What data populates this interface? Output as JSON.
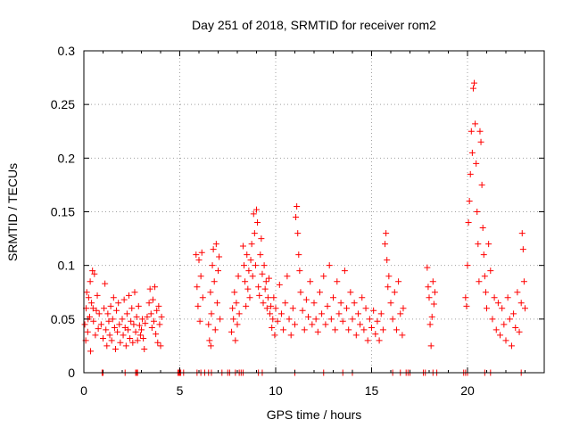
{
  "chart_data": {
    "type": "scatter",
    "title": "Day 251 of 2018, SRMTID for receiver rom2",
    "xlabel": "GPS time / hours",
    "ylabel": "SRMTID / TECUs",
    "xlim": [
      0,
      24
    ],
    "ylim": [
      0,
      0.3
    ],
    "xticks": [
      0,
      5,
      10,
      15,
      20
    ],
    "xtick_labels": [
      "0",
      "5",
      "10",
      "15",
      "20"
    ],
    "yticks": [
      0,
      0.05,
      0.1,
      0.15,
      0.2,
      0.25,
      0.3
    ],
    "ytick_labels": [
      "0",
      "0.05",
      "0.1",
      "0.15",
      "0.2",
      "0.25",
      "0.3"
    ],
    "grid": true,
    "marker": "+",
    "color": "#ff0000",
    "series": [
      {
        "name": "SRMTID rom2",
        "points": [
          [
            0.05,
            0.045
          ],
          [
            0.12,
            0.06
          ],
          [
            0.2,
            0.038
          ],
          [
            0.25,
            0.07
          ],
          [
            0.3,
            0.052
          ],
          [
            0.35,
            0.02
          ],
          [
            0.4,
            0.065
          ],
          [
            0.45,
            0.095
          ],
          [
            0.5,
            0.048
          ],
          [
            0.55,
            0.092
          ],
          [
            0.6,
            0.035
          ],
          [
            0.65,
            0.058
          ],
          [
            0.7,
            0.072
          ],
          [
            0.75,
            0.041
          ],
          [
            0.8,
            0.055
          ],
          [
            0.1,
            0.03
          ],
          [
            0.15,
            0.075
          ],
          [
            0.22,
            0.05
          ],
          [
            0.33,
            0.085
          ],
          [
            0.48,
            0.06
          ],
          [
            0.9,
            0.045
          ],
          [
            1.0,
            0.032
          ],
          [
            1.05,
            0.06
          ],
          [
            1.1,
            0.083
          ],
          [
            1.15,
            0.04
          ],
          [
            1.2,
            0.025
          ],
          [
            1.25,
            0.055
          ],
          [
            1.3,
            0.048
          ],
          [
            1.35,
            0.035
          ],
          [
            1.4,
            0.062
          ],
          [
            1.45,
            0.03
          ],
          [
            1.5,
            0.05
          ],
          [
            1.55,
            0.07
          ],
          [
            1.6,
            0.042
          ],
          [
            1.65,
            0.022
          ],
          [
            1.7,
            0.058
          ],
          [
            1.75,
            0.038
          ],
          [
            1.8,
            0.065
          ],
          [
            1.85,
            0.045
          ],
          [
            1.9,
            0.028
          ],
          [
            2.0,
            0.05
          ],
          [
            2.05,
            0.035
          ],
          [
            2.1,
            0.068
          ],
          [
            2.15,
            0.042
          ],
          [
            2.2,
            0.025
          ],
          [
            2.25,
            0.055
          ],
          [
            2.3,
            0.04
          ],
          [
            2.35,
            0.072
          ],
          [
            2.4,
            0.032
          ],
          [
            2.45,
            0.048
          ],
          [
            2.5,
            0.06
          ],
          [
            2.55,
            0.028
          ],
          [
            2.6,
            0.045
          ],
          [
            2.65,
            0.075
          ],
          [
            2.7,
            0.038
          ],
          [
            2.75,
            0.052
          ],
          [
            2.8,
            0.03
          ],
          [
            2.85,
            0.062
          ],
          [
            2.9,
            0.044
          ],
          [
            2.95,
            0.035
          ],
          [
            3.0,
            0.04
          ],
          [
            3.05,
            0.05
          ],
          [
            3.1,
            0.032
          ],
          [
            3.15,
            0.022
          ],
          [
            3.2,
            0.046
          ],
          [
            3.3,
            0.052
          ],
          [
            3.4,
            0.065
          ],
          [
            3.45,
            0.078
          ],
          [
            3.5,
            0.055
          ],
          [
            3.55,
            0.042
          ],
          [
            3.6,
            0.068
          ],
          [
            3.65,
            0.048
          ],
          [
            3.7,
            0.08
          ],
          [
            3.75,
            0.036
          ],
          [
            3.8,
            0.058
          ],
          [
            3.85,
            0.028
          ],
          [
            3.9,
            0.062
          ],
          [
            3.95,
            0.045
          ],
          [
            4.0,
            0.025
          ],
          [
            4.05,
            0.052
          ],
          [
            5.85,
            0.11
          ],
          [
            5.9,
            0.08
          ],
          [
            5.95,
            0.062
          ],
          [
            6.0,
            0.105
          ],
          [
            6.05,
            0.048
          ],
          [
            6.1,
            0.09
          ],
          [
            6.15,
            0.112
          ],
          [
            6.2,
            0.07
          ],
          [
            6.5,
            0.045
          ],
          [
            6.55,
            0.03
          ],
          [
            6.6,
            0.075
          ],
          [
            6.65,
            0.055
          ],
          [
            6.7,
            0.1
          ],
          [
            6.75,
            0.115
          ],
          [
            6.8,
            0.085
          ],
          [
            6.85,
            0.04
          ],
          [
            6.9,
            0.12
          ],
          [
            6.95,
            0.065
          ],
          [
            7.0,
            0.095
          ],
          [
            7.05,
            0.108
          ],
          [
            7.1,
            0.05
          ],
          [
            6.62,
            0.025
          ],
          [
            7.7,
            0.038
          ],
          [
            7.75,
            0.06
          ],
          [
            7.8,
            0.05
          ],
          [
            7.85,
            0.075
          ],
          [
            7.9,
            0.03
          ],
          [
            7.95,
            0.065
          ],
          [
            8.0,
            0.045
          ],
          [
            8.05,
            0.09
          ],
          [
            8.1,
            0.055
          ],
          [
            8.3,
            0.118
          ],
          [
            8.35,
            0.1
          ],
          [
            8.4,
            0.085
          ],
          [
            8.45,
            0.062
          ],
          [
            8.5,
            0.11
          ],
          [
            8.55,
            0.078
          ],
          [
            8.6,
            0.095
          ],
          [
            8.65,
            0.07
          ],
          [
            8.7,
            0.105
          ],
          [
            8.75,
            0.12
          ],
          [
            8.8,
            0.09
          ],
          [
            8.85,
            0.148
          ],
          [
            8.9,
            0.13
          ],
          [
            8.95,
            0.1
          ],
          [
            9.0,
            0.152
          ],
          [
            9.05,
            0.14
          ],
          [
            9.1,
            0.08
          ],
          [
            9.15,
            0.072
          ],
          [
            9.2,
            0.11
          ],
          [
            9.25,
            0.125
          ],
          [
            9.3,
            0.092
          ],
          [
            9.35,
            0.065
          ],
          [
            9.4,
            0.1
          ],
          [
            9.45,
            0.078
          ],
          [
            9.5,
            0.085
          ],
          [
            9.55,
            0.06
          ],
          [
            9.6,
            0.07
          ],
          [
            9.65,
            0.088
          ],
          [
            9.7,
            0.055
          ],
          [
            9.75,
            0.062
          ],
          [
            9.8,
            0.042
          ],
          [
            9.85,
            0.05
          ],
          [
            9.9,
            0.07
          ],
          [
            9.95,
            0.035
          ],
          [
            10.0,
            0.06
          ],
          [
            10.1,
            0.048
          ],
          [
            10.2,
            0.082
          ],
          [
            10.3,
            0.055
          ],
          [
            10.4,
            0.04
          ],
          [
            10.5,
            0.065
          ],
          [
            10.6,
            0.09
          ],
          [
            10.7,
            0.05
          ],
          [
            10.8,
            0.035
          ],
          [
            10.9,
            0.06
          ],
          [
            11.0,
            0.045
          ],
          [
            11.05,
            0.145
          ],
          [
            11.1,
            0.155
          ],
          [
            11.15,
            0.13
          ],
          [
            11.2,
            0.11
          ],
          [
            11.25,
            0.095
          ],
          [
            11.3,
            0.075
          ],
          [
            11.4,
            0.058
          ],
          [
            11.5,
            0.04
          ],
          [
            11.6,
            0.068
          ],
          [
            11.7,
            0.052
          ],
          [
            11.8,
            0.085
          ],
          [
            11.9,
            0.045
          ],
          [
            12.0,
            0.065
          ],
          [
            12.1,
            0.05
          ],
          [
            12.2,
            0.038
          ],
          [
            12.3,
            0.075
          ],
          [
            12.4,
            0.055
          ],
          [
            12.5,
            0.09
          ],
          [
            12.6,
            0.045
          ],
          [
            12.7,
            0.062
          ],
          [
            12.8,
            0.1
          ],
          [
            12.9,
            0.05
          ],
          [
            13.0,
            0.07
          ],
          [
            13.1,
            0.04
          ],
          [
            13.2,
            0.085
          ],
          [
            13.3,
            0.055
          ],
          [
            13.4,
            0.065
          ],
          [
            13.5,
            0.048
          ],
          [
            13.6,
            0.095
          ],
          [
            13.7,
            0.06
          ],
          [
            13.8,
            0.04
          ],
          [
            13.9,
            0.075
          ],
          [
            14.0,
            0.05
          ],
          [
            14.1,
            0.065
          ],
          [
            14.2,
            0.035
          ],
          [
            14.3,
            0.055
          ],
          [
            14.4,
            0.045
          ],
          [
            14.5,
            0.07
          ],
          [
            14.6,
            0.04
          ],
          [
            14.7,
            0.06
          ],
          [
            14.8,
            0.03
          ],
          [
            14.9,
            0.05
          ],
          [
            15.0,
            0.042
          ],
          [
            15.1,
            0.058
          ],
          [
            15.2,
            0.036
          ],
          [
            15.3,
            0.048
          ],
          [
            15.4,
            0.03
          ],
          [
            15.5,
            0.055
          ],
          [
            15.6,
            0.04
          ],
          [
            15.7,
            0.12
          ],
          [
            15.75,
            0.13
          ],
          [
            15.8,
            0.105
          ],
          [
            15.85,
            0.08
          ],
          [
            15.9,
            0.09
          ],
          [
            16.0,
            0.065
          ],
          [
            16.1,
            0.05
          ],
          [
            16.2,
            0.075
          ],
          [
            16.3,
            0.04
          ],
          [
            16.4,
            0.085
          ],
          [
            16.5,
            0.055
          ],
          [
            16.6,
            0.035
          ],
          [
            16.65,
            0.06
          ],
          [
            17.9,
            0.098
          ],
          [
            17.95,
            0.08
          ],
          [
            18.0,
            0.07
          ],
          [
            18.05,
            0.045
          ],
          [
            18.1,
            0.025
          ],
          [
            18.15,
            0.052
          ],
          [
            18.2,
            0.085
          ],
          [
            18.25,
            0.064
          ],
          [
            18.3,
            0.075
          ],
          [
            19.9,
            0.07
          ],
          [
            19.95,
            0.062
          ],
          [
            20.0,
            0.1
          ],
          [
            20.05,
            0.14
          ],
          [
            20.1,
            0.16
          ],
          [
            20.15,
            0.185
          ],
          [
            20.2,
            0.225
          ],
          [
            20.25,
            0.205
          ],
          [
            20.3,
            0.265
          ],
          [
            20.35,
            0.27
          ],
          [
            20.4,
            0.232
          ],
          [
            20.45,
            0.195
          ],
          [
            20.5,
            0.15
          ],
          [
            20.55,
            0.12
          ],
          [
            20.6,
            0.085
          ],
          [
            20.65,
            0.225
          ],
          [
            20.7,
            0.215
          ],
          [
            20.75,
            0.175
          ],
          [
            20.8,
            0.135
          ],
          [
            20.85,
            0.11
          ],
          [
            20.9,
            0.09
          ],
          [
            20.95,
            0.075
          ],
          [
            21.0,
            0.06
          ],
          [
            21.1,
            0.12
          ],
          [
            21.2,
            0.095
          ],
          [
            21.3,
            0.05
          ],
          [
            21.4,
            0.07
          ],
          [
            21.5,
            0.04
          ],
          [
            21.6,
            0.065
          ],
          [
            21.7,
            0.035
          ],
          [
            21.8,
            0.06
          ],
          [
            21.9,
            0.045
          ],
          [
            22.0,
            0.03
          ],
          [
            22.1,
            0.07
          ],
          [
            22.2,
            0.05
          ],
          [
            22.3,
            0.025
          ],
          [
            22.4,
            0.055
          ],
          [
            22.5,
            0.042
          ],
          [
            22.6,
            0.075
          ],
          [
            22.7,
            0.038
          ],
          [
            22.8,
            0.065
          ],
          [
            22.85,
            0.13
          ],
          [
            22.9,
            0.115
          ],
          [
            22.95,
            0.085
          ],
          [
            23.0,
            0.06
          ]
        ]
      }
    ],
    "baseline_markers_x": [
      0.95,
      1.0,
      2.15,
      2.7,
      2.75,
      2.8,
      4.9,
      4.95,
      5.0,
      5.05,
      5.2,
      5.9,
      6.1,
      6.3,
      6.5,
      6.65,
      7.2,
      7.5,
      7.6,
      7.9,
      8.1,
      8.2,
      8.3,
      9.1,
      9.3,
      11.0,
      12.5,
      13.5,
      14.0,
      16.1,
      16.5,
      16.8,
      16.9,
      17.0,
      17.7,
      17.8,
      18.2,
      18.4,
      19.8,
      19.9,
      20.0,
      20.9,
      21.2,
      22.8
    ]
  }
}
